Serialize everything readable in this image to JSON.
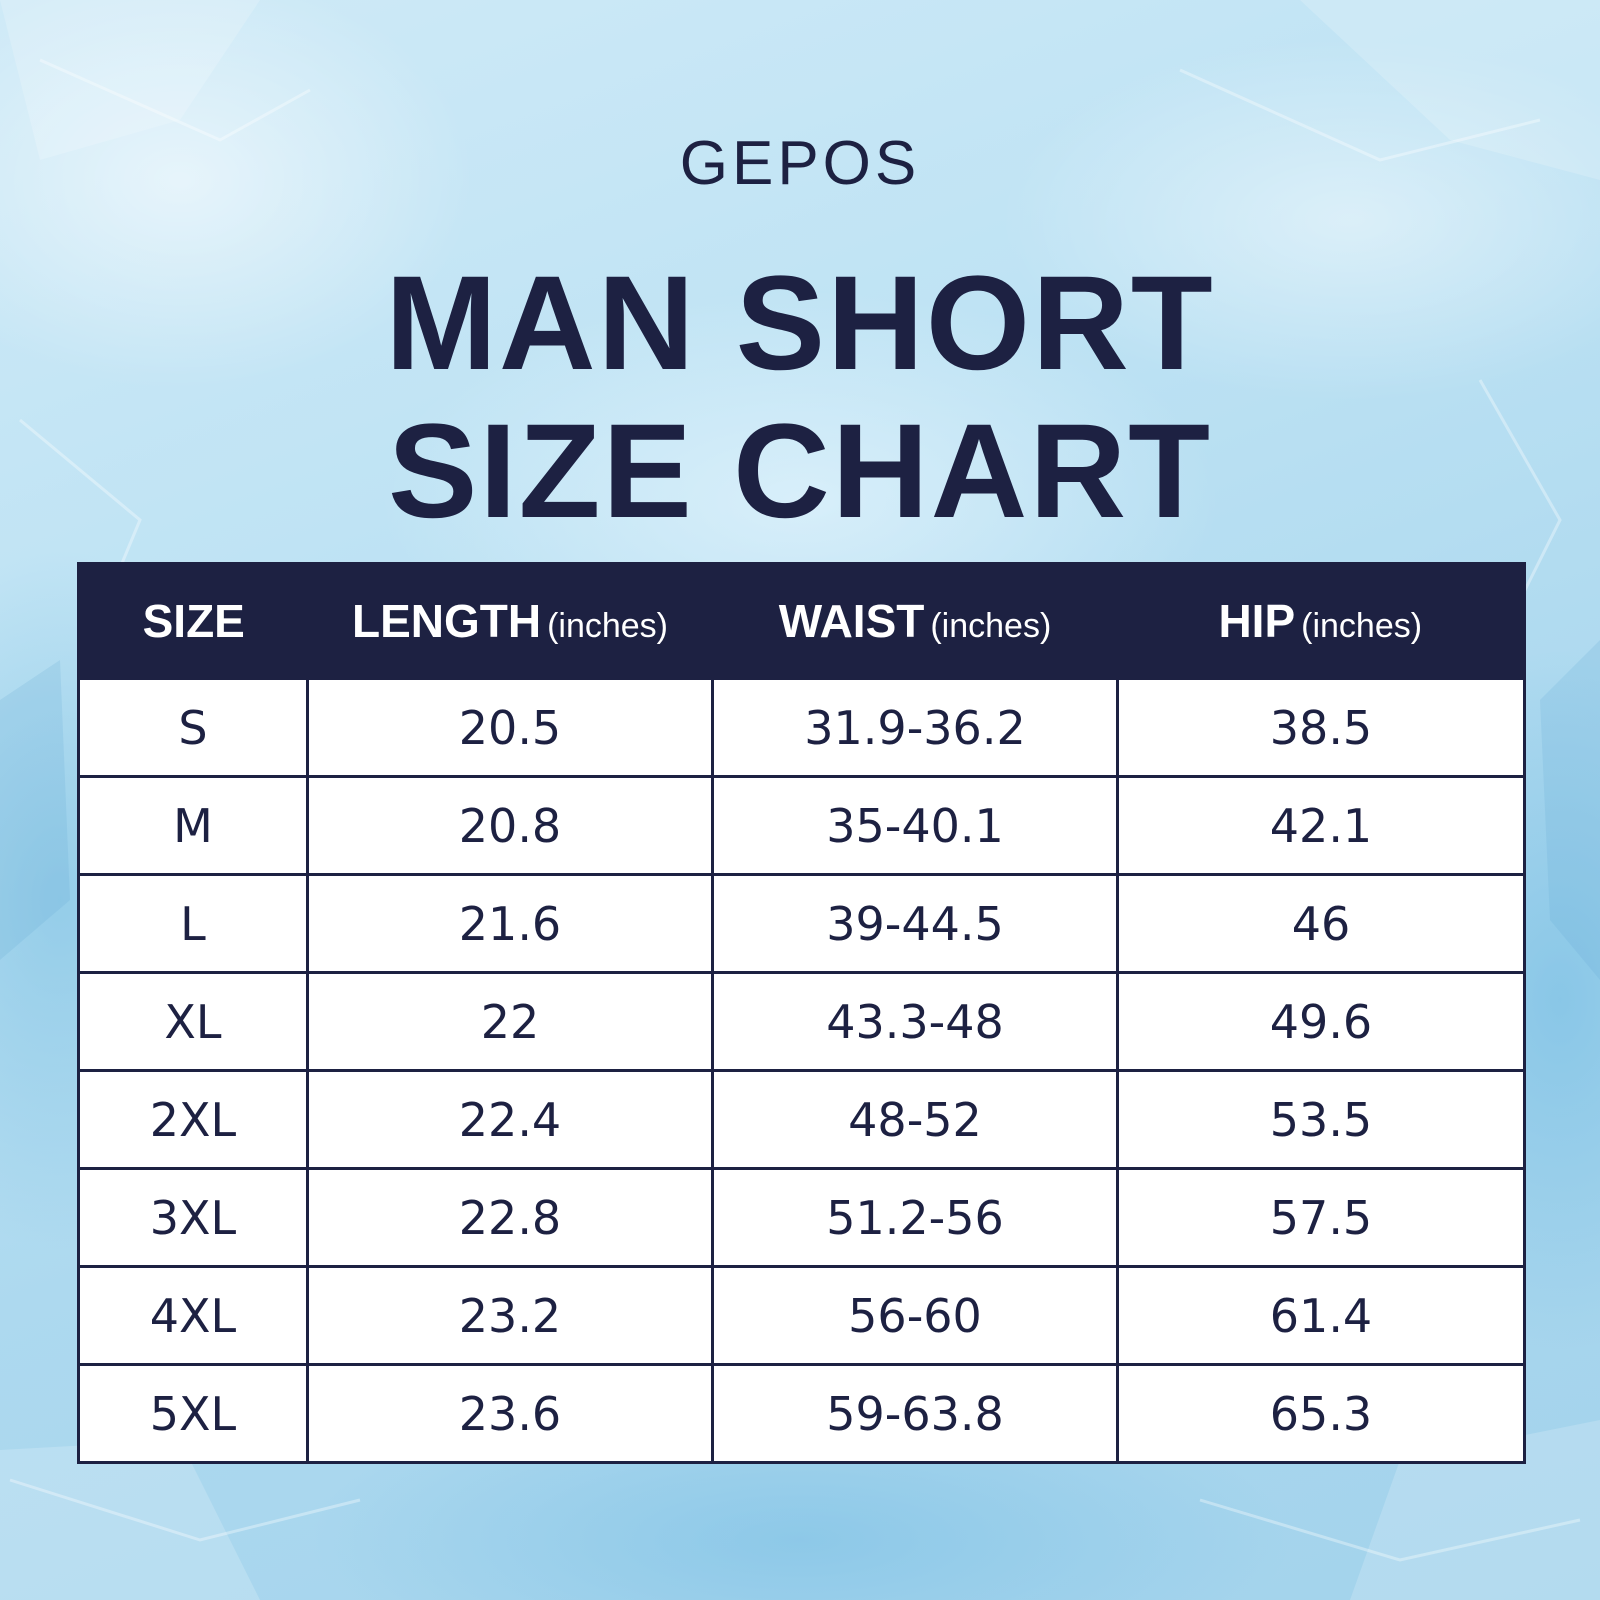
{
  "brand": "GEPOS",
  "title": {
    "line1": "MAN SHORT",
    "line2": "SIZE CHART"
  },
  "colors": {
    "navy": "#1d2142",
    "background": "#bfe3f4",
    "cell": "#ffffff"
  },
  "table": {
    "headers": [
      {
        "label": "SIZE",
        "unit": ""
      },
      {
        "label": "LENGTH",
        "unit": "(inches)"
      },
      {
        "label": "WAIST",
        "unit": "(inches)"
      },
      {
        "label": "HIP",
        "unit": "(inches)"
      }
    ],
    "rows": [
      [
        "S",
        "20.5",
        "31.9-36.2",
        "38.5"
      ],
      [
        "M",
        "20.8",
        "35-40.1",
        "42.1"
      ],
      [
        "L",
        "21.6",
        "39-44.5",
        "46"
      ],
      [
        "XL",
        "22",
        "43.3-48",
        "49.6"
      ],
      [
        "2XL",
        "22.4",
        "48-52",
        "53.5"
      ],
      [
        "3XL",
        "22.8",
        "51.2-56",
        "57.5"
      ],
      [
        "4XL",
        "23.2",
        "56-60",
        "61.4"
      ],
      [
        "5XL",
        "23.6",
        "59-63.8",
        "65.3"
      ]
    ]
  }
}
